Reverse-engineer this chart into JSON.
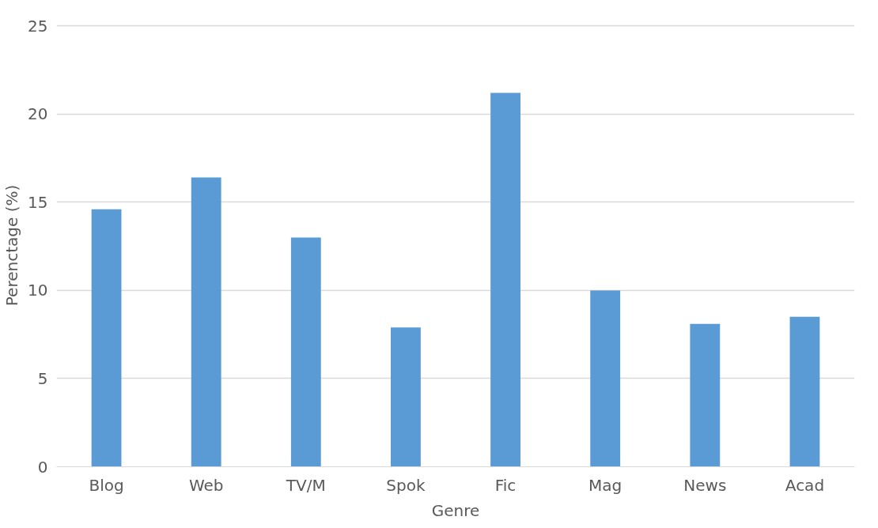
{
  "chart_data": {
    "type": "bar",
    "xlabel": "Genre",
    "ylabel": "Perenctage (%)",
    "categories": [
      "Blog",
      "Web",
      "TV/M",
      "Spok",
      "Fic",
      "Mag",
      "News",
      "Acad"
    ],
    "values": [
      14.6,
      16.4,
      13.0,
      7.9,
      21.2,
      10.0,
      8.1,
      8.5
    ],
    "color": "#5b9bd5",
    "ylim": [
      0,
      25
    ],
    "yticks": [
      0,
      5,
      10,
      15,
      20,
      25
    ],
    "grid": "y"
  }
}
